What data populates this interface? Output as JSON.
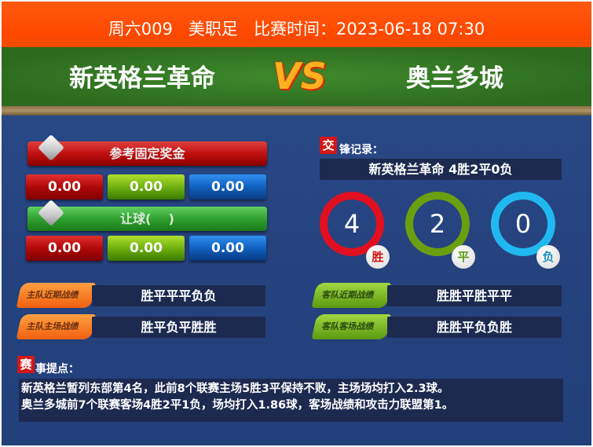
{
  "header": {
    "match_no": "周六009",
    "league": "美职足",
    "time_label": "比赛时间：",
    "time": "2023-06-18 07:30"
  },
  "teams": {
    "home": "新英格兰革命",
    "vs": "VS",
    "away": "奥兰多城"
  },
  "odds": {
    "fixed_title": "参考固定奖金",
    "fixed": [
      "0.00",
      "0.00",
      "0.00"
    ],
    "handicap_title": "让球(    )",
    "handicap": [
      "0.00",
      "0.00",
      "0.00"
    ]
  },
  "form": {
    "home_recent_label": "主队近期战绩",
    "home_recent": "胜平平平负负",
    "home_home_label": "主队主场战绩",
    "home_home": "胜平负平胜胜",
    "away_recent_label": "客队近期战绩",
    "away_recent": "胜胜平胜平平",
    "away_away_label": "客队客场战绩",
    "away_away": "胜胜平负负胜"
  },
  "h2h": {
    "icon_char": "交",
    "title": "锋记录：",
    "summary": "新英格兰革命  4胜2平0负",
    "win": "4",
    "draw": "2",
    "loss": "0",
    "win_label": "胜",
    "draw_label": "平",
    "loss_label": "负",
    "colors": {
      "win": "#e01020",
      "draw": "#6aa010",
      "loss": "#20b8f0"
    }
  },
  "tips": {
    "icon_char": "赛",
    "title": "事提点：",
    "lines": [
      "新英格兰暂列东部第4名，此前8个联赛主场5胜3平保持不败，主场场均打入2.3球。",
      "奥兰多城前7个联赛客场4胜2平1负，场均打入1.86球，客场战绩和攻击力联盟第1。"
    ]
  }
}
